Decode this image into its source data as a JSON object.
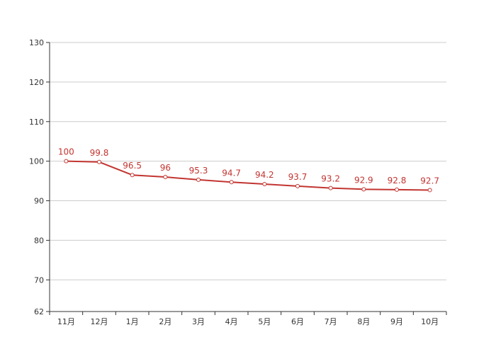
{
  "chart_data": {
    "type": "line",
    "title": "",
    "xlabel": "",
    "ylabel": "",
    "categories": [
      "11月",
      "12月",
      "1月",
      "2月",
      "3月",
      "4月",
      "5月",
      "6月",
      "7月",
      "8月",
      "9月",
      "10月"
    ],
    "series": [
      {
        "values": [
          100,
          99.8,
          96.5,
          96,
          95.3,
          94.7,
          94.2,
          93.7,
          93.2,
          92.9,
          92.8,
          92.7
        ],
        "color": "#c23531"
      }
    ],
    "ylim": [
      62,
      130
    ],
    "yticks": [
      62,
      70,
      80,
      90,
      100,
      110,
      120,
      130
    ],
    "grid": true,
    "data_labels": true,
    "legend": "none"
  }
}
